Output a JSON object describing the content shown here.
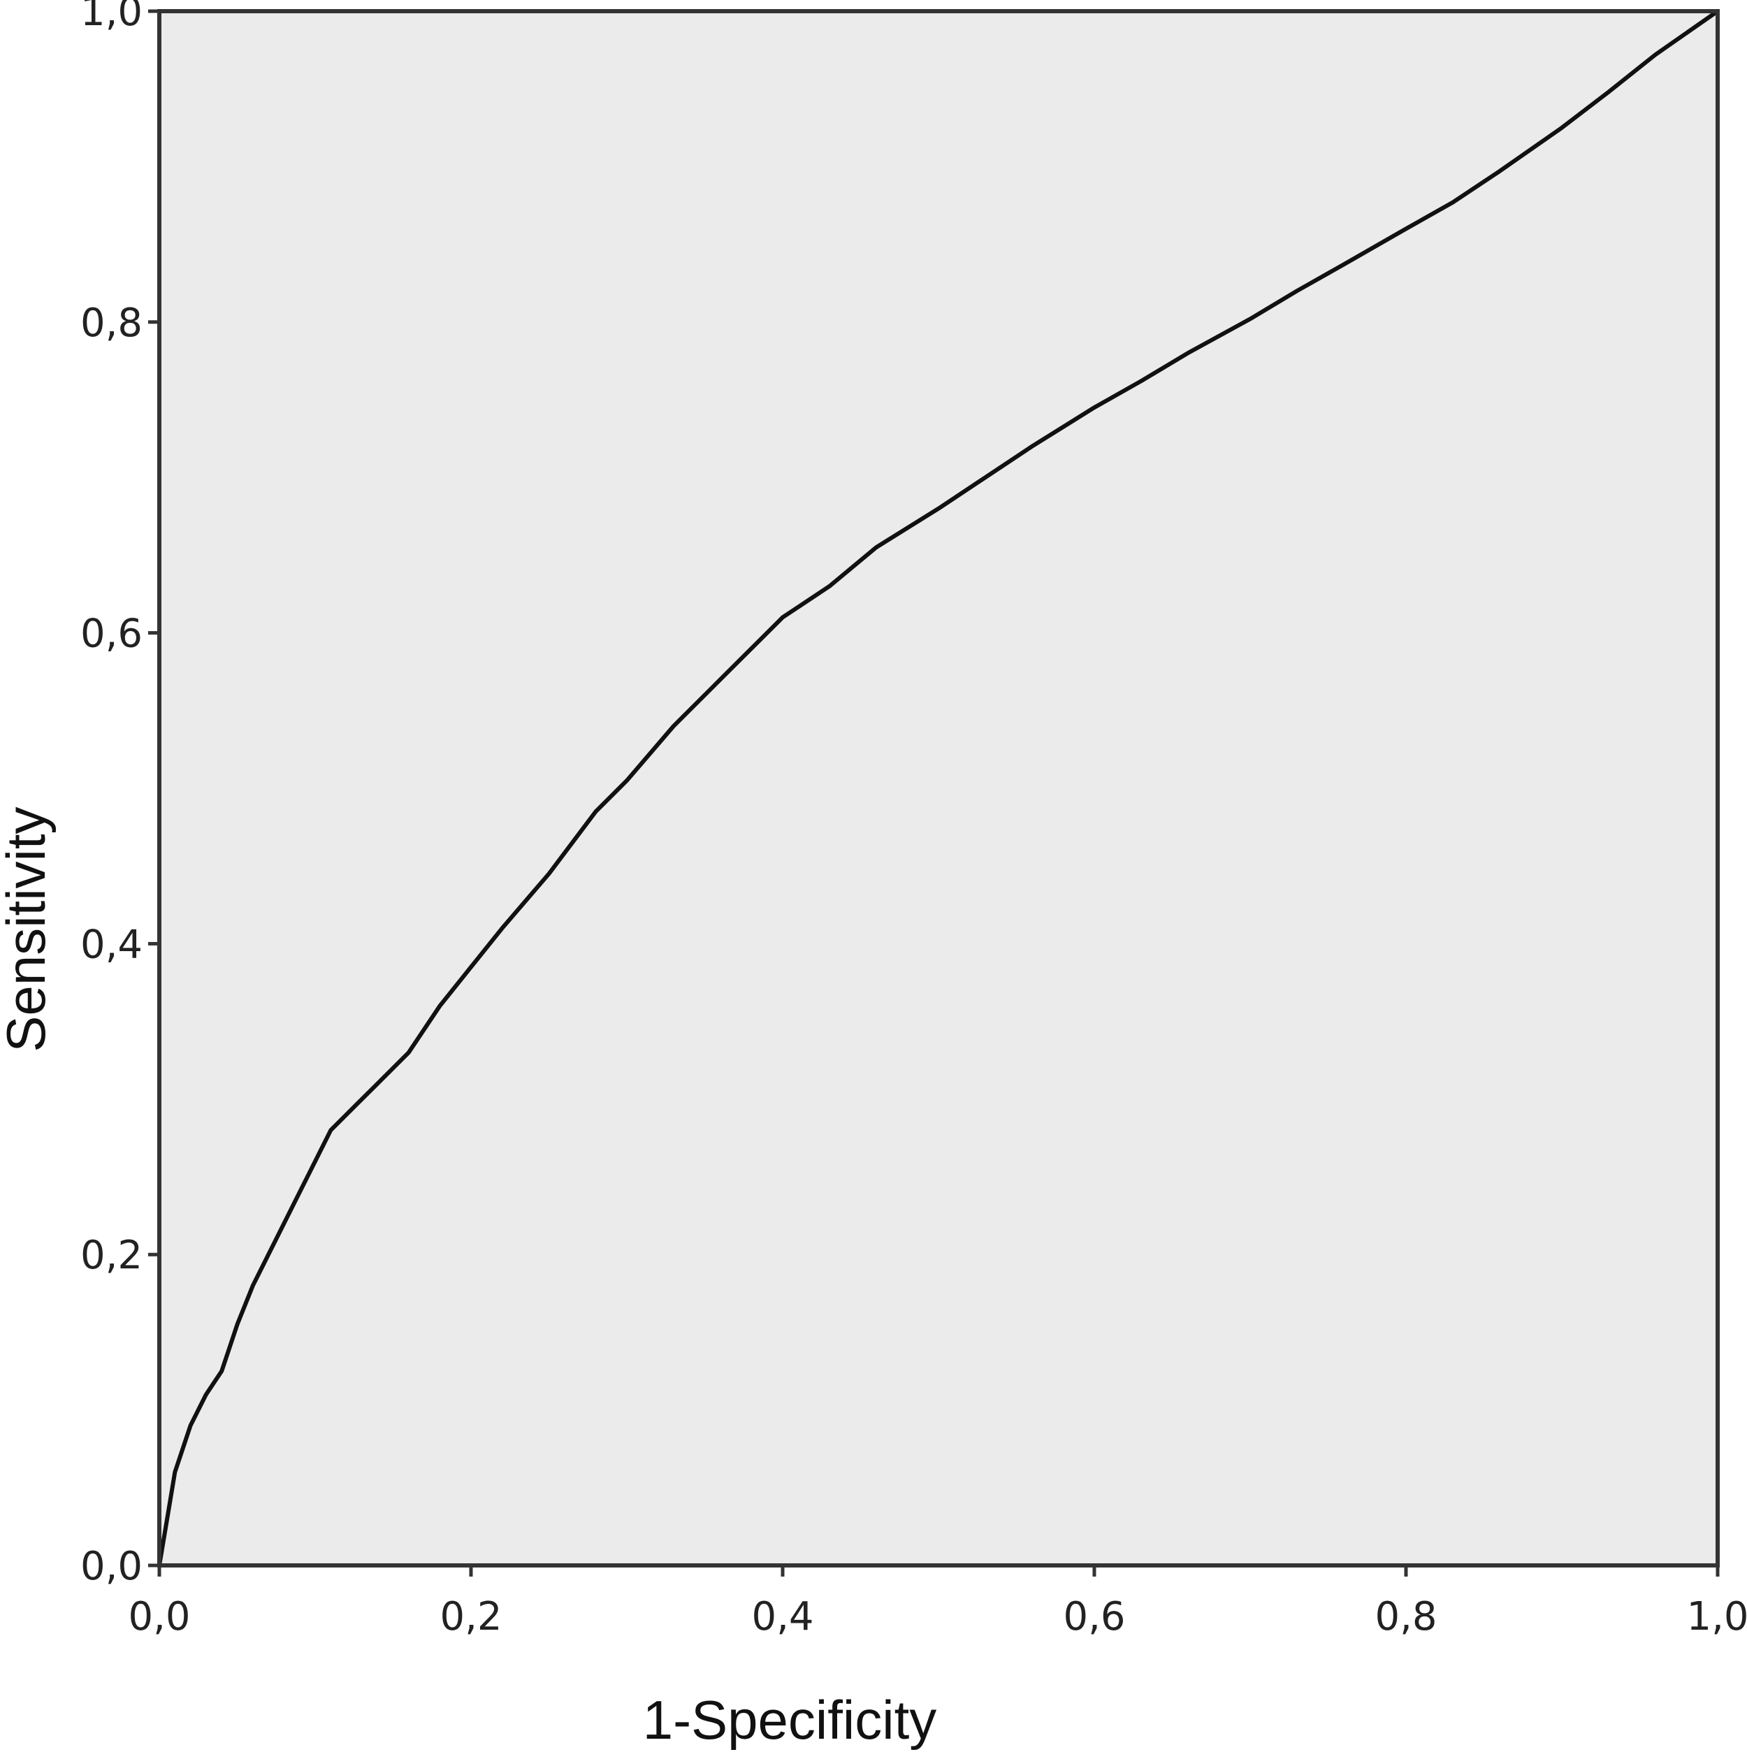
{
  "chart_data": {
    "type": "line",
    "title": "",
    "xlabel": "1-Specificity",
    "ylabel": "Sensitivity",
    "xlim": [
      0,
      1
    ],
    "ylim": [
      0,
      1
    ],
    "x_ticks": [
      "0,0",
      "0,2",
      "0,4",
      "0,6",
      "0,8",
      "1,0"
    ],
    "y_ticks": [
      "0,0",
      "0,2",
      "0,4",
      "0,6",
      "0,8",
      "1,0"
    ],
    "grid": false,
    "legend": "none",
    "colors": {
      "plot_background": "#ebebeb",
      "line": "#111111",
      "frame": "#333333"
    },
    "series": [
      {
        "x": [
          0.0,
          0.005,
          0.01,
          0.02,
          0.03,
          0.04,
          0.045,
          0.05,
          0.06,
          0.07,
          0.08,
          0.09,
          0.1,
          0.11,
          0.12,
          0.14,
          0.16,
          0.18,
          0.2,
          0.22,
          0.25,
          0.28,
          0.3,
          0.33,
          0.36,
          0.4,
          0.43,
          0.46,
          0.5,
          0.53,
          0.56,
          0.6,
          0.63,
          0.66,
          0.7,
          0.73,
          0.76,
          0.8,
          0.83,
          0.86,
          0.9,
          0.93,
          0.96,
          1.0
        ],
        "y": [
          0.0,
          0.03,
          0.06,
          0.09,
          0.11,
          0.125,
          0.14,
          0.155,
          0.18,
          0.2,
          0.22,
          0.24,
          0.26,
          0.28,
          0.29,
          0.31,
          0.33,
          0.36,
          0.385,
          0.41,
          0.445,
          0.485,
          0.505,
          0.54,
          0.57,
          0.61,
          0.63,
          0.655,
          0.68,
          0.7,
          0.72,
          0.745,
          0.762,
          0.78,
          0.802,
          0.82,
          0.837,
          0.86,
          0.877,
          0.897,
          0.925,
          0.948,
          0.972,
          1.0
        ]
      }
    ]
  }
}
